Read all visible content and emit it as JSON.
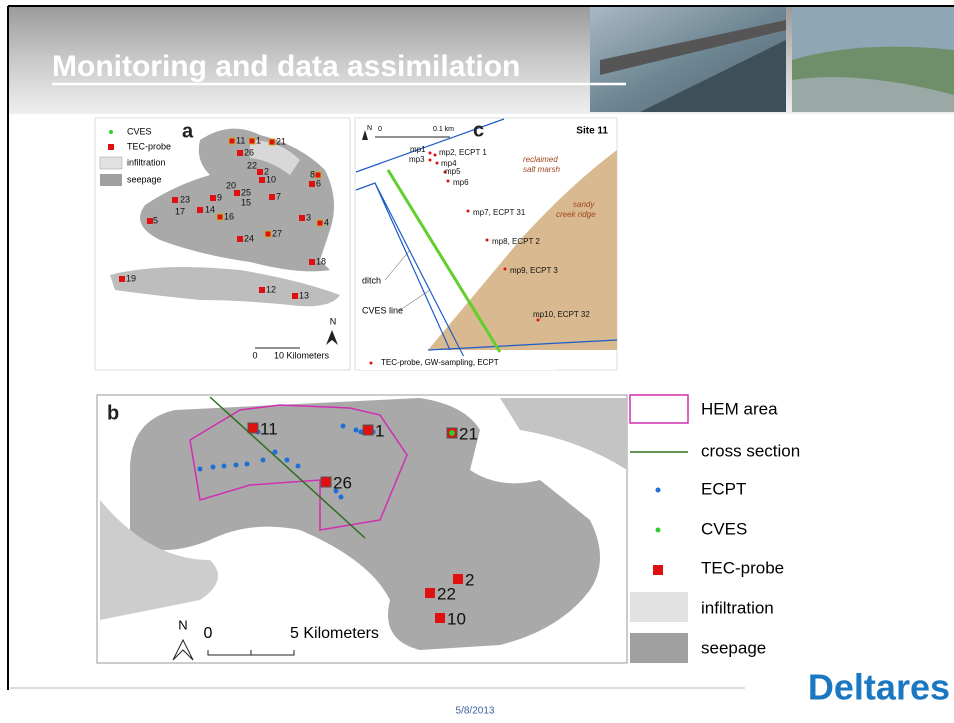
{
  "header": {
    "title": "Monitoring and data assimilation"
  },
  "map_a": {
    "label": "a",
    "legend": [
      "CVES",
      "TEC-probe",
      "infiltration",
      "seepage"
    ],
    "sites": [
      "11",
      "1",
      "21",
      "26",
      "22",
      "2",
      "10",
      "8",
      "6",
      "20",
      "25",
      "15",
      "7",
      "23",
      "17",
      "9",
      "14",
      "16",
      "3",
      "4",
      "5",
      "24",
      "27",
      "18",
      "19",
      "12",
      "13"
    ],
    "north": "N",
    "scale": {
      "zero": "0",
      "length": "10 Kilometers"
    }
  },
  "map_c": {
    "label": "c",
    "site": "Site 11",
    "north": "N",
    "scale": {
      "zero": "0",
      "length": "0.1 km"
    },
    "points": [
      "mp1",
      "mp2, ECPT 1",
      "mp3",
      "mp4",
      "mp5",
      "mp6",
      "mp7, ECPT 31",
      "mp8, ECPT 2",
      "mp9, ECPT 3",
      "mp10, ECPT 32"
    ],
    "areas": [
      [
        "reclaimed",
        "salt marsh"
      ],
      [
        "sandy",
        "creek ridge"
      ]
    ],
    "lines": [
      "ditch",
      "CVES line"
    ],
    "legend": "TEC-probe, GW-sampling, ECPT"
  },
  "map_b": {
    "label": "b",
    "sites": [
      "11",
      "1",
      "21",
      "26",
      "2",
      "22",
      "10"
    ],
    "north": "N",
    "scale": {
      "zero": "0",
      "length": "5 Kilometers"
    },
    "legend": [
      "HEM area",
      "cross section",
      "ECPT",
      "CVES",
      "TEC-probe",
      "infiltration",
      "seepage"
    ]
  },
  "footer": {
    "date": "5/8/2013",
    "logo": "Deltares"
  }
}
